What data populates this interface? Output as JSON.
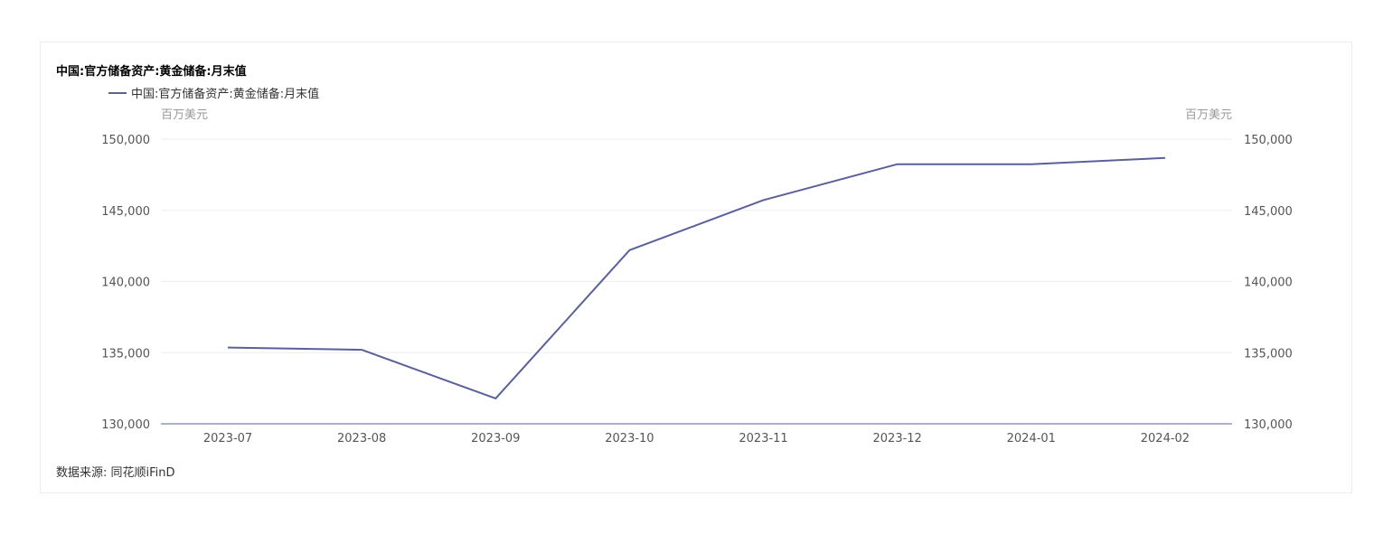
{
  "chart_data": {
    "type": "line",
    "title": "中国:官方储备资产:黄金储备:月末值",
    "categories": [
      "2023-07",
      "2023-08",
      "2023-09",
      "2023-10",
      "2023-11",
      "2023-12",
      "2024-01",
      "2024-02"
    ],
    "series": [
      {
        "name": "中国:官方储备资产:黄金储备:月末值",
        "values": [
          135360,
          135200,
          131780,
          142200,
          145720,
          148240,
          148240,
          148680
        ],
        "color": "#5a6099"
      }
    ],
    "ylabel_left": "百万美元",
    "ylabel_right": "百万美元",
    "ylim": [
      130000,
      150000
    ],
    "yticks": [
      130000,
      135000,
      140000,
      145000,
      150000
    ],
    "ytick_labels": [
      "130,000",
      "135,000",
      "140,000",
      "145,000",
      "150,000"
    ],
    "grid": true,
    "legend_position": "top-left"
  },
  "source": {
    "label": "数据来源:",
    "value": "同花顺iFinD"
  }
}
